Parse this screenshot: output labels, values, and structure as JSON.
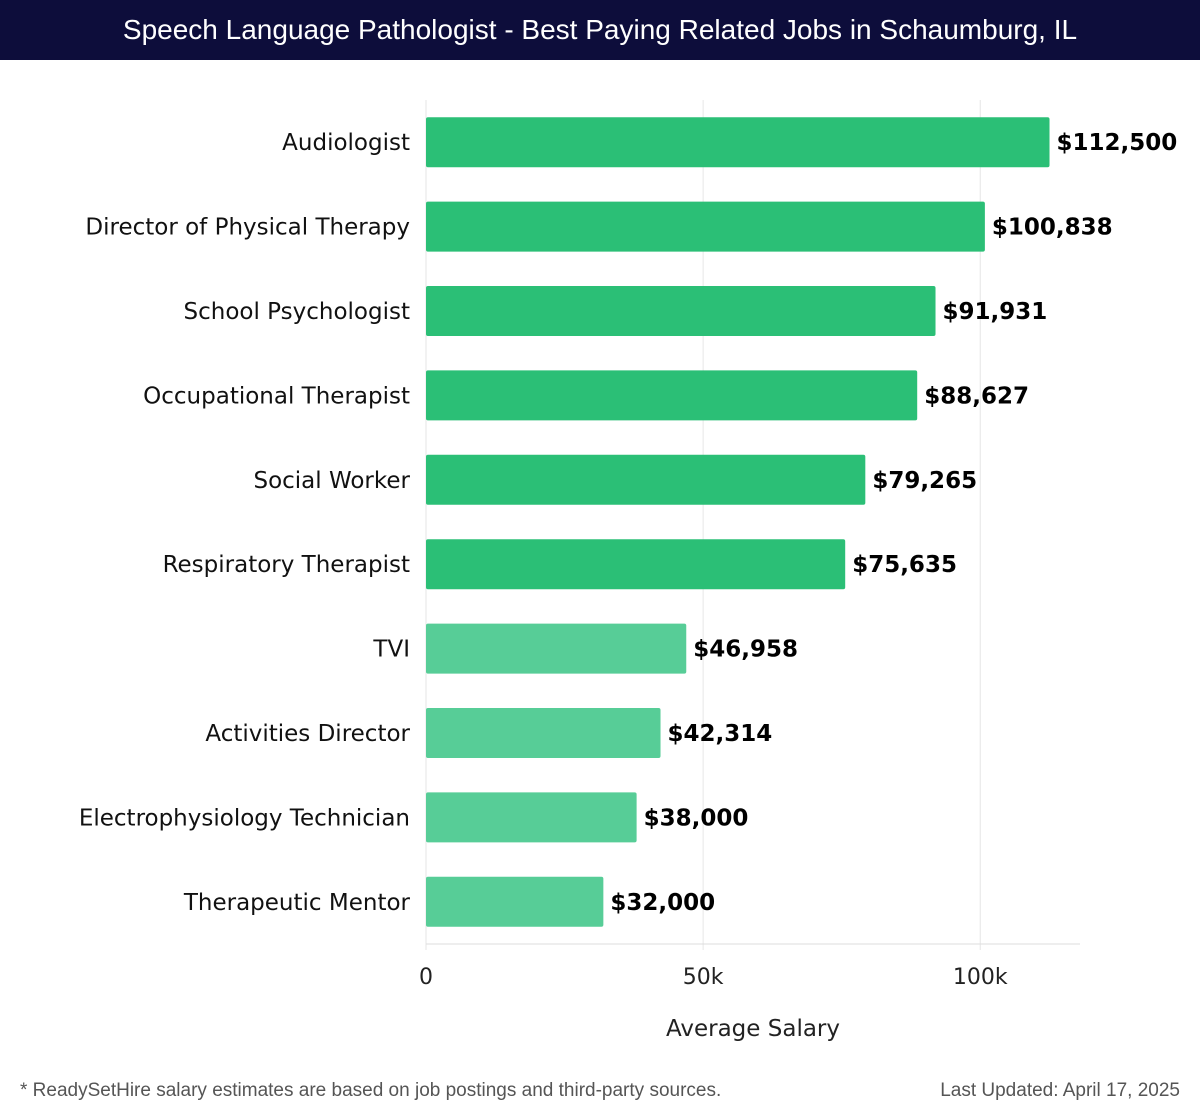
{
  "chart_data": {
    "type": "bar",
    "orientation": "horizontal",
    "title": "Speech Language Pathologist - Best Paying Related Jobs in Schaumburg, IL",
    "xlabel": "Average Salary",
    "ylabel": "",
    "categories": [
      "Audiologist",
      "Director of Physical Therapy",
      "School Psychologist",
      "Occupational Therapist",
      "Social Worker",
      "Respiratory Therapist",
      "TVI",
      "Activities Director",
      "Electrophysiology Technician",
      "Therapeutic Mentor"
    ],
    "values": [
      112500,
      100838,
      91931,
      88627,
      79265,
      75635,
      46958,
      42314,
      38000,
      32000
    ],
    "value_labels": [
      "$112,500",
      "$100,838",
      "$91,931",
      "$88,627",
      "$79,265",
      "$75,635",
      "$46,958",
      "$42,314",
      "$38,000",
      "$32,000"
    ],
    "xlim": [
      0,
      118000
    ],
    "x_ticks": [
      0,
      50000,
      100000
    ],
    "x_tick_labels": [
      "0",
      "50k",
      "100k"
    ],
    "grid": true,
    "colors": {
      "bar_dark": "#2bbf76",
      "bar_light": "#57cd97",
      "grid": "#e6e6e6"
    }
  },
  "footer": {
    "note": "* ReadySetHire salary estimates are based on job postings and third-party sources.",
    "updated": "Last Updated: April 17, 2025"
  },
  "header": {
    "title": "Speech Language Pathologist - Best Paying Related Jobs in Schaumburg, IL"
  }
}
